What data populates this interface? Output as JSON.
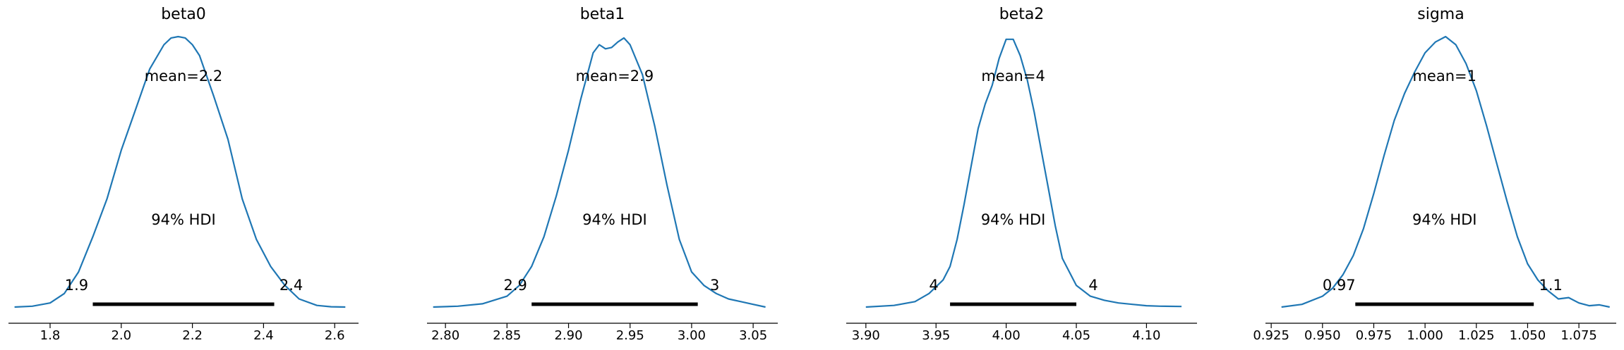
{
  "chart_data": [
    {
      "type": "area",
      "title": "beta0",
      "mean_label": "mean=2.2",
      "hdi_label": "94% HDI",
      "hdi": {
        "low": 1.92,
        "high": 2.43,
        "low_label": "1.9",
        "high_label": "2.4"
      },
      "xlim": [
        1.683,
        2.667
      ],
      "xticks": [
        1.8,
        2.0,
        2.2,
        2.4,
        2.6
      ],
      "xtick_labels": [
        "1.8",
        "2.0",
        "2.2",
        "2.4",
        "2.6"
      ],
      "density_x": [
        1.7,
        1.75,
        1.8,
        1.84,
        1.88,
        1.92,
        1.96,
        2.0,
        2.04,
        2.08,
        2.12,
        2.14,
        2.16,
        2.18,
        2.2,
        2.22,
        2.26,
        2.3,
        2.34,
        2.38,
        2.42,
        2.46,
        2.5,
        2.55,
        2.59,
        2.63
      ],
      "density_y": [
        0.0,
        0.003,
        0.015,
        0.05,
        0.13,
        0.26,
        0.4,
        0.58,
        0.73,
        0.88,
        0.97,
        0.995,
        1.0,
        0.995,
        0.97,
        0.93,
        0.78,
        0.62,
        0.4,
        0.25,
        0.15,
        0.08,
        0.03,
        0.006,
        0.001,
        0.0
      ]
    },
    {
      "type": "area",
      "title": "beta1",
      "mean_label": "mean=2.9",
      "hdi_label": "94% HDI",
      "hdi": {
        "low": 2.87,
        "high": 3.005,
        "low_label": "2.9",
        "high_label": "3"
      },
      "xlim": [
        2.785,
        3.07
      ],
      "xticks": [
        2.8,
        2.85,
        2.9,
        2.95,
        3.0,
        3.05
      ],
      "xtick_labels": [
        "2.80",
        "2.85",
        "2.90",
        "2.95",
        "3.00",
        "3.05"
      ],
      "density_x": [
        2.79,
        2.81,
        2.83,
        2.85,
        2.86,
        2.87,
        2.88,
        2.89,
        2.9,
        2.91,
        2.92,
        2.925,
        2.93,
        2.935,
        2.94,
        2.945,
        2.95,
        2.96,
        2.97,
        2.98,
        2.99,
        3.0,
        3.01,
        3.02,
        3.03,
        3.04,
        3.05,
        3.06
      ],
      "density_y": [
        0.0,
        0.003,
        0.012,
        0.04,
        0.08,
        0.15,
        0.26,
        0.41,
        0.58,
        0.77,
        0.94,
        0.97,
        0.955,
        0.96,
        0.98,
        0.995,
        0.97,
        0.86,
        0.67,
        0.45,
        0.25,
        0.13,
        0.08,
        0.05,
        0.03,
        0.02,
        0.01,
        0.0
      ]
    },
    {
      "type": "area",
      "title": "beta2",
      "mean_label": "mean=4",
      "hdi_label": "94% HDI",
      "hdi": {
        "low": 3.96,
        "high": 4.05,
        "low_label": "4",
        "high_label": "4"
      },
      "xlim": [
        3.886,
        4.136
      ],
      "xticks": [
        3.9,
        3.95,
        4.0,
        4.05,
        4.1
      ],
      "xtick_labels": [
        "3.90",
        "3.95",
        "4.00",
        "4.05",
        "4.10"
      ],
      "density_x": [
        3.9,
        3.92,
        3.935,
        3.945,
        3.955,
        3.96,
        3.965,
        3.97,
        3.975,
        3.98,
        3.985,
        3.99,
        3.995,
        4.0,
        4.005,
        4.01,
        4.015,
        4.02,
        4.025,
        4.03,
        4.035,
        4.04,
        4.05,
        4.06,
        4.07,
        4.08,
        4.09,
        4.1,
        4.11,
        4.125
      ],
      "density_y": [
        0.0,
        0.006,
        0.02,
        0.05,
        0.1,
        0.15,
        0.25,
        0.38,
        0.52,
        0.66,
        0.75,
        0.82,
        0.92,
        0.99,
        0.99,
        0.93,
        0.84,
        0.72,
        0.58,
        0.44,
        0.3,
        0.18,
        0.08,
        0.04,
        0.025,
        0.015,
        0.01,
        0.005,
        0.003,
        0.002
      ]
    },
    {
      "type": "area",
      "title": "sigma",
      "mean_label": "mean=1",
      "hdi_label": "94% HDI",
      "hdi": {
        "low": 0.966,
        "high": 1.053,
        "low_label": "0.97",
        "high_label": "1.1"
      },
      "xlim": [
        0.9222,
        1.0932
      ],
      "xticks": [
        0.925,
        0.95,
        0.975,
        1.0,
        1.025,
        1.05,
        1.075
      ],
      "xtick_labels": [
        "0.925",
        "0.950",
        "0.975",
        "1.000",
        "1.025",
        "1.050",
        "1.075"
      ],
      "density_x": [
        0.93,
        0.94,
        0.95,
        0.955,
        0.96,
        0.965,
        0.97,
        0.975,
        0.98,
        0.985,
        0.99,
        0.995,
        1.0,
        1.005,
        1.01,
        1.015,
        1.02,
        1.025,
        1.03,
        1.035,
        1.04,
        1.045,
        1.05,
        1.055,
        1.06,
        1.065,
        1.07,
        1.075,
        1.08,
        1.085,
        1.09
      ],
      "density_y": [
        0.0,
        0.01,
        0.04,
        0.07,
        0.12,
        0.19,
        0.29,
        0.42,
        0.56,
        0.69,
        0.79,
        0.87,
        0.94,
        0.98,
        1.0,
        0.97,
        0.9,
        0.8,
        0.67,
        0.53,
        0.39,
        0.26,
        0.16,
        0.1,
        0.06,
        0.03,
        0.035,
        0.015,
        0.005,
        0.008,
        0.0
      ]
    }
  ],
  "style": {
    "line_color": "#1f77b4",
    "hdi_color": "#000000",
    "axis_color": "#000000"
  }
}
